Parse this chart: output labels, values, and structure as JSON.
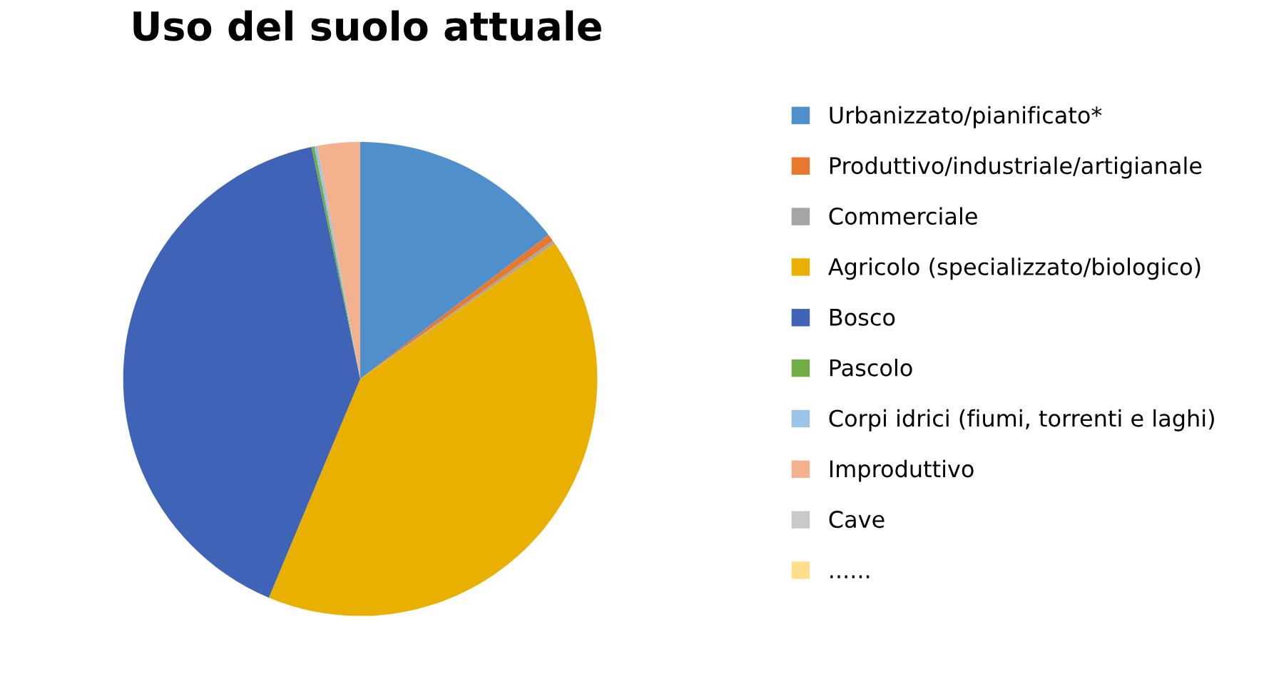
{
  "chart_data": {
    "type": "pie",
    "title": "Uso del suolo attuale",
    "categories": [
      "Urbanizzato/pianificato*",
      "Produttivo/industriale/artigianale",
      "Commerciale",
      "Agricolo (specializzato/biologico)",
      "Bosco",
      "Pascolo",
      "Corpi idrici (fiumi, torrenti e laghi)",
      "Improduttivo",
      "Cave",
      "......"
    ],
    "values": [
      14.6,
      0.5,
      0.2,
      41.0,
      40.4,
      0.2,
      0.2,
      2.9,
      0,
      0
    ],
    "colors": [
      "#4f8fcc",
      "#e8782e",
      "#a5a5a5",
      "#eab000",
      "#3f63b6",
      "#70ad47",
      "#9dc3e6",
      "#f4b18e",
      "#c9c9c9",
      "#ffe08a"
    ],
    "legend": "right"
  }
}
